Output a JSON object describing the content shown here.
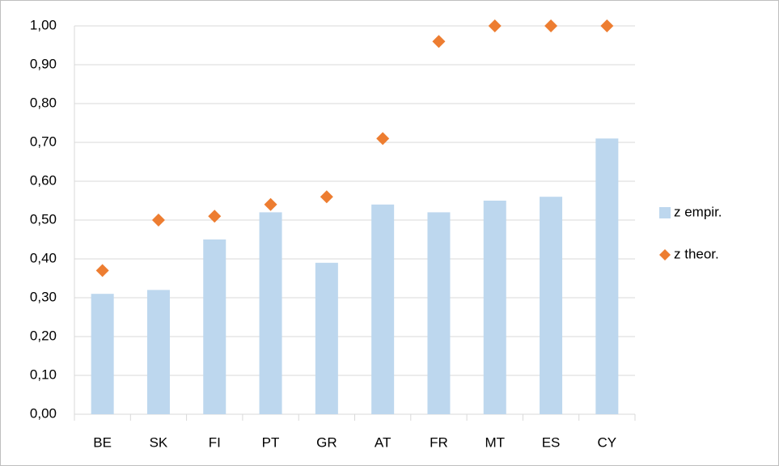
{
  "chart_data": {
    "type": "bar",
    "categories": [
      "BE",
      "SK",
      "FI",
      "PT",
      "GR",
      "AT",
      "FR",
      "MT",
      "ES",
      "CY"
    ],
    "series": [
      {
        "name": "z empir.",
        "type": "bar",
        "color": "#bdd7ee",
        "values": [
          0.31,
          0.32,
          0.45,
          0.52,
          0.39,
          0.54,
          0.52,
          0.55,
          0.56,
          0.71
        ]
      },
      {
        "name": "z theor.",
        "type": "scatter",
        "color": "#ed7d31",
        "values": [
          0.37,
          0.5,
          0.51,
          0.54,
          0.56,
          0.71,
          0.96,
          1.0,
          1.0,
          1.0
        ]
      }
    ],
    "ylim": [
      0,
      1
    ],
    "yticks": [
      {
        "value": 0,
        "label": "0,00"
      },
      {
        "value": 0.1,
        "label": "0,10"
      },
      {
        "value": 0.2,
        "label": "0,20"
      },
      {
        "value": 0.3,
        "label": "0,30"
      },
      {
        "value": 0.4,
        "label": "0,40"
      },
      {
        "value": 0.5,
        "label": "0,50"
      },
      {
        "value": 0.6,
        "label": "0,60"
      },
      {
        "value": 0.7,
        "label": "0,70"
      },
      {
        "value": 0.8,
        "label": "0,80"
      },
      {
        "value": 0.9,
        "label": "0,90"
      },
      {
        "value": 1,
        "label": "1,00"
      }
    ],
    "grid": true,
    "legend": "right"
  }
}
